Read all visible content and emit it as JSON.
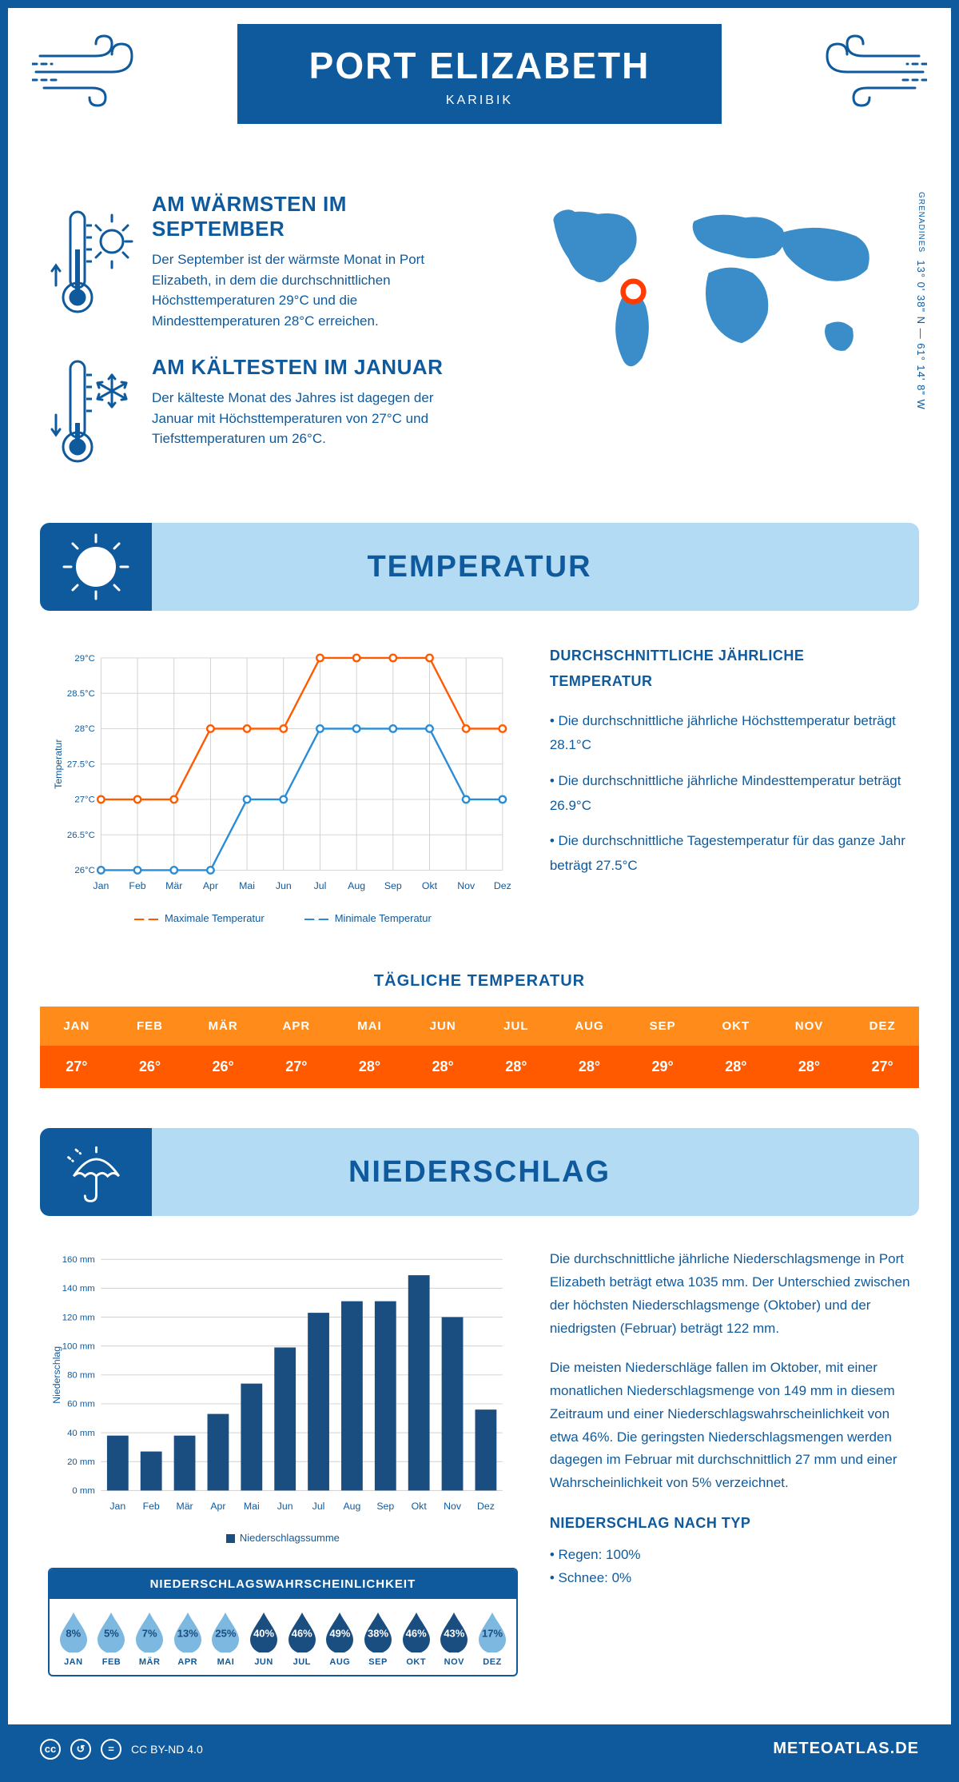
{
  "header": {
    "title": "PORT ELIZABETH",
    "subtitle": "KARIBIK"
  },
  "climate": {
    "warmest_title": "AM WÄRMSTEN IM SEPTEMBER",
    "warmest_text": "Der September ist der wärmste Monat in Port Elizabeth, in dem die durchschnittlichen Höchsttemperaturen 29°C und die Mindesttemperaturen 28°C erreichen.",
    "coldest_title": "AM KÄLTESTEN IM JANUAR",
    "coldest_text": "Der kälteste Monat des Jahres ist dagegen der Januar mit Höchsttemperaturen von 27°C und Tiefsttemperaturen um 26°C.",
    "coords_main": "13° 0' 38\" N — 61° 14' 8\" W",
    "coords_sub": "GRENADINES"
  },
  "temperature": {
    "section_title": "TEMPERATUR",
    "info_title": "DURCHSCHNITTLICHE JÄHRLICHE TEMPERATUR",
    "bullets": [
      "• Die durchschnittliche jährliche Höchsttemperatur beträgt 28.1°C",
      "• Die durchschnittliche jährliche Mindesttemperatur beträgt 26.9°C",
      "• Die durchschnittliche Tagestemperatur für das ganze Jahr beträgt 27.5°C"
    ],
    "chart": {
      "months": [
        "Jan",
        "Feb",
        "Mär",
        "Apr",
        "Mai",
        "Jun",
        "Jul",
        "Aug",
        "Sep",
        "Okt",
        "Nov",
        "Dez"
      ],
      "max_series": [
        27,
        27,
        27,
        28,
        28,
        28,
        29,
        29,
        29,
        29,
        28,
        28
      ],
      "min_series": [
        26,
        26,
        26,
        26,
        27,
        27,
        28,
        28,
        28,
        28,
        27,
        27
      ],
      "y_ticks": [
        "26°C",
        "26.5°C",
        "27°C",
        "27.5°C",
        "28°C",
        "28.5°C",
        "29°C"
      ],
      "y_min": 26,
      "y_max": 29,
      "max_color": "#ff5a00",
      "min_color": "#2b8cd6",
      "grid_color": "#d0d0d0",
      "axis_label": "Temperatur",
      "legend_max": "Maximale Temperatur",
      "legend_min": "Minimale Temperatur"
    },
    "daily_title": "TÄGLICHE TEMPERATUR",
    "daily_months": [
      "JAN",
      "FEB",
      "MÄR",
      "APR",
      "MAI",
      "JUN",
      "JUL",
      "AUG",
      "SEP",
      "OKT",
      "NOV",
      "DEZ"
    ],
    "daily_values": [
      "27°",
      "26°",
      "26°",
      "27°",
      "28°",
      "28°",
      "28°",
      "28°",
      "29°",
      "28°",
      "28°",
      "27°"
    ],
    "daily_header_bg": "#ff8c1a",
    "daily_value_bg": "#ff5a00"
  },
  "precip": {
    "section_title": "NIEDERSCHLAG",
    "chart": {
      "months": [
        "Jan",
        "Feb",
        "Mär",
        "Apr",
        "Mai",
        "Jun",
        "Jul",
        "Aug",
        "Sep",
        "Okt",
        "Nov",
        "Dez"
      ],
      "values_mm": [
        38,
        27,
        38,
        53,
        74,
        99,
        123,
        131,
        131,
        149,
        120,
        56
      ],
      "y_ticks": [
        0,
        20,
        40,
        60,
        80,
        100,
        120,
        140,
        160
      ],
      "y_max": 160,
      "bar_color": "#1a4d80",
      "axis_label": "Niederschlag",
      "legend": "Niederschlagssumme"
    },
    "para1": "Die durchschnittliche jährliche Niederschlagsmenge in Port Elizabeth beträgt etwa 1035 mm. Der Unterschied zwischen der höchsten Niederschlagsmenge (Oktober) und der niedrigsten (Februar) beträgt 122 mm.",
    "para2": "Die meisten Niederschläge fallen im Oktober, mit einer monatlichen Niederschlagsmenge von 149 mm in diesem Zeitraum und einer Niederschlagswahrscheinlichkeit von etwa 46%. Die geringsten Niederschlagsmengen werden dagegen im Februar mit durchschnittlich 27 mm und einer Wahrscheinlichkeit von 5% verzeichnet.",
    "type_title": "NIEDERSCHLAG NACH TYP",
    "type_rain": "• Regen: 100%",
    "type_snow": "• Schnee: 0%",
    "prob": {
      "title": "NIEDERSCHLAGSWAHRSCHEINLICHKEIT",
      "months": [
        "JAN",
        "FEB",
        "MÄR",
        "APR",
        "MAI",
        "JUN",
        "JUL",
        "AUG",
        "SEP",
        "OKT",
        "NOV",
        "DEZ"
      ],
      "values": [
        8,
        5,
        7,
        13,
        25,
        40,
        46,
        49,
        38,
        46,
        43,
        17
      ],
      "light_color": "#7db8e0",
      "dark_color": "#1a4d80",
      "dark_threshold": 30
    }
  },
  "footer": {
    "license": "CC BY-ND 4.0",
    "brand": "METEOATLAS.DE"
  },
  "colors": {
    "primary": "#0f5a9c",
    "light_blue": "#b4dbf4",
    "map_blue": "#3a8dc8"
  }
}
